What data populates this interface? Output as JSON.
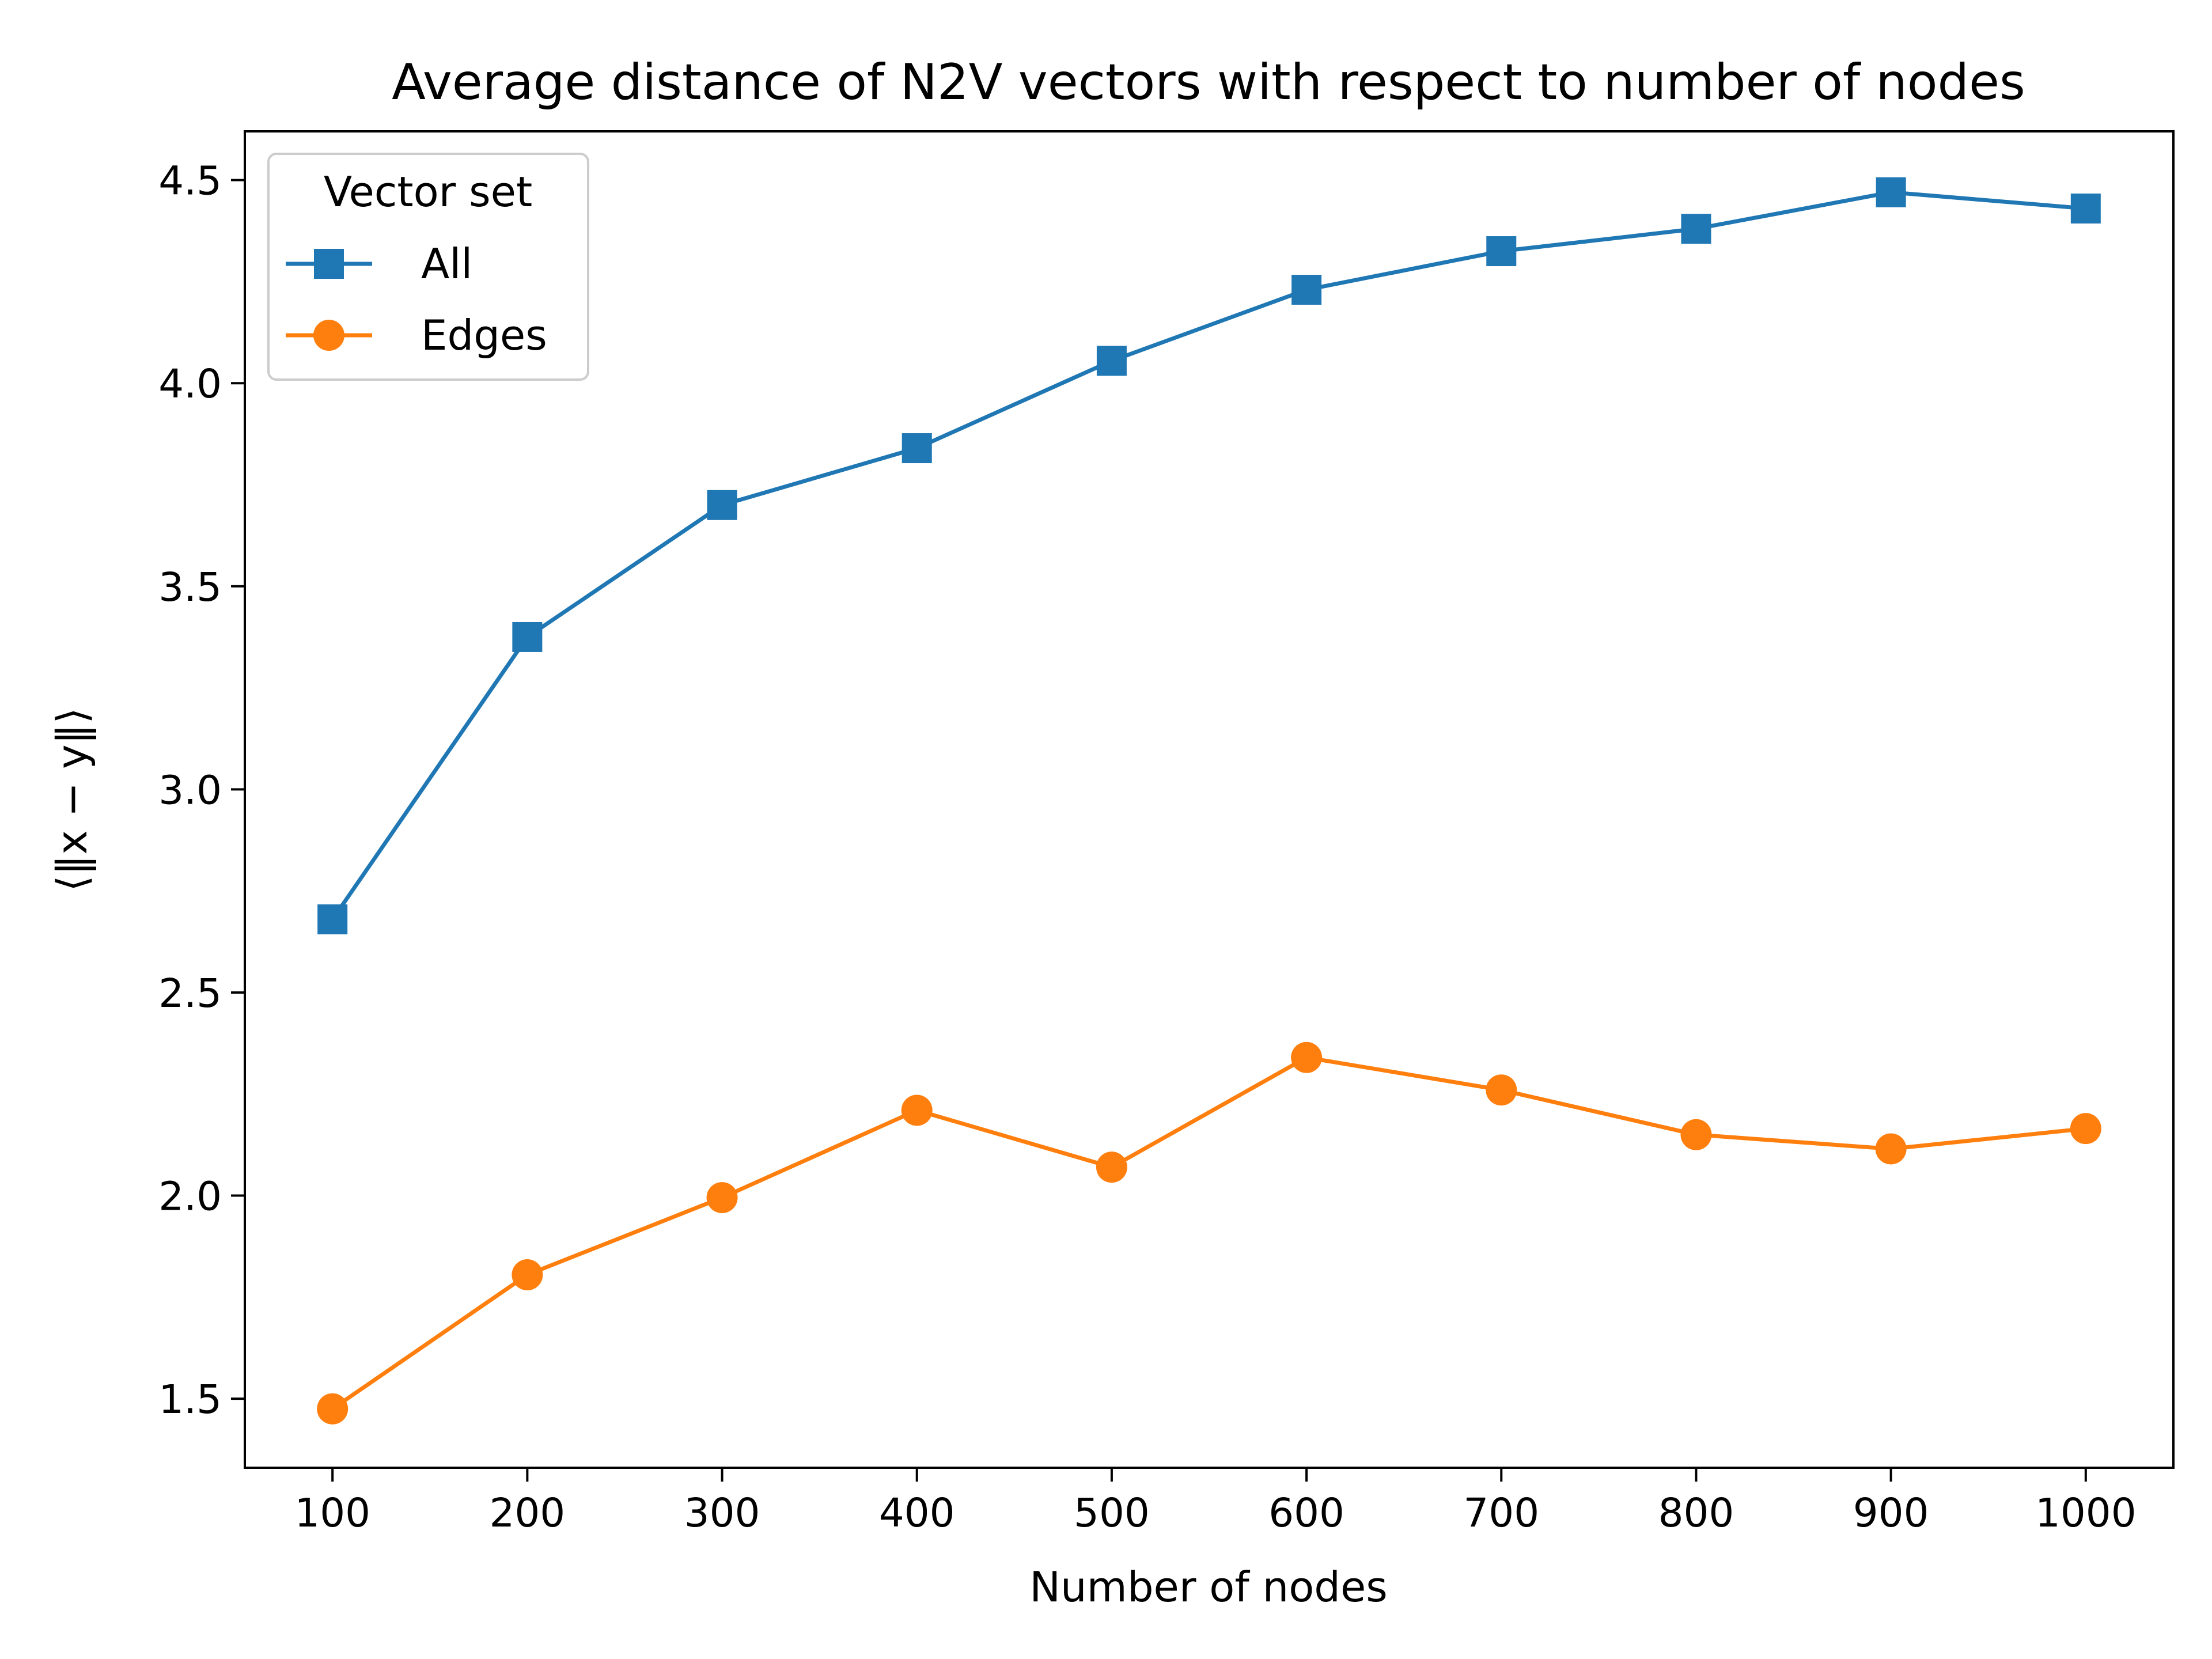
{
  "chart_data": {
    "type": "line",
    "title": "Average distance of N2V vectors with respect to number of nodes",
    "xlabel": "Number of nodes",
    "ylabel": "⟨‖x − y‖⟩",
    "x": [
      100,
      200,
      300,
      400,
      500,
      600,
      700,
      800,
      900,
      1000
    ],
    "x_ticks": [
      "100",
      "200",
      "300",
      "400",
      "500",
      "600",
      "700",
      "800",
      "900",
      "1000"
    ],
    "y_ticks": [
      "1.5",
      "2.0",
      "2.5",
      "3.0",
      "3.5",
      "4.0",
      "4.5"
    ],
    "xlim": [
      55,
      1045
    ],
    "ylim": [
      1.33,
      4.62
    ],
    "grid": false,
    "legend": {
      "title": "Vector set",
      "placement": "upper-left"
    },
    "series": [
      {
        "name": "All",
        "marker": "square",
        "color": "#1f77b4",
        "values": [
          2.68,
          3.375,
          3.7,
          3.84,
          4.055,
          4.23,
          4.325,
          4.38,
          4.47,
          4.43
        ]
      },
      {
        "name": "Edges",
        "marker": "circle",
        "color": "#ff7f0e",
        "values": [
          1.475,
          1.805,
          1.995,
          2.21,
          2.07,
          2.34,
          2.26,
          2.15,
          2.115,
          2.165
        ]
      }
    ]
  }
}
